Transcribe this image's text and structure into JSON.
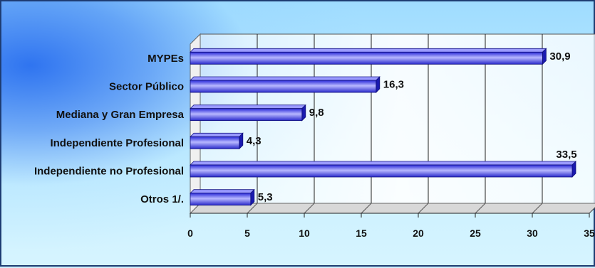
{
  "chart_data": {
    "type": "bar",
    "orientation": "horizontal",
    "title": "",
    "categories": [
      "MYPEs",
      "Sector Público",
      "Mediana y Gran Empresa",
      "Independiente Profesional",
      "Independiente no Profesional",
      "Otros 1/."
    ],
    "values": [
      30.9,
      16.3,
      9.8,
      4.3,
      33.5,
      5.3
    ],
    "value_labels": [
      "30,9",
      "16,3",
      "9,8",
      "4,3",
      "33,5",
      "5,3"
    ],
    "xlim": [
      0,
      35
    ],
    "x_ticks": [
      "0",
      "5",
      "10",
      "15",
      "20",
      "25",
      "30",
      "35"
    ],
    "xlabel": "",
    "ylabel": "",
    "grid": true,
    "legend": "none",
    "colors": {
      "bar": "#3a3ae6",
      "bar_light": "#e8e8ff",
      "bar_dark": "#1010a0"
    }
  }
}
